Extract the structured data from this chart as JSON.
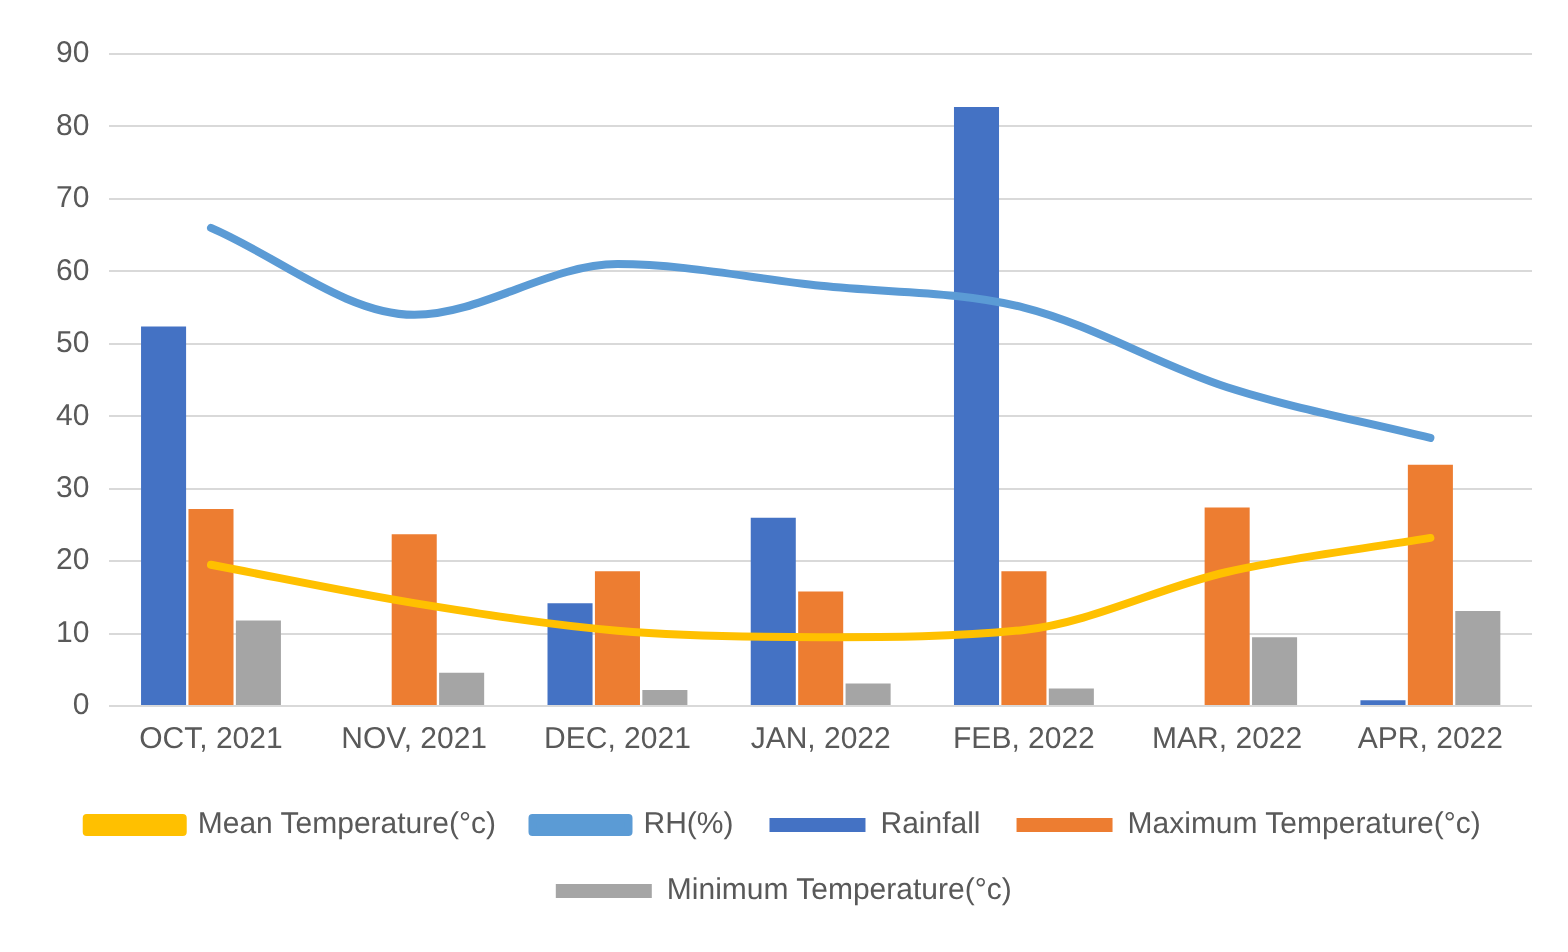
{
  "chart_data": {
    "type": "bar",
    "categories": [
      "OCT, 2021",
      "NOV, 2021",
      "DEC, 2021",
      "JAN, 2022",
      "FEB, 2022",
      "MAR, 2022",
      "APR, 2022"
    ],
    "series": [
      {
        "name": "Rainfall",
        "color": "#4472c4",
        "values": [
          52.4,
          0,
          14.2,
          26,
          82.7,
          0,
          0.8
        ]
      },
      {
        "name": "Maximum Temperature(°c)",
        "color": "#ed7d31",
        "values": [
          27.2,
          23.7,
          18.6,
          15.8,
          18.6,
          27.4,
          33.3
        ]
      },
      {
        "name": "Minimum Temperature(°c)",
        "color": "#a5a5a5",
        "values": [
          11.8,
          4.6,
          2.2,
          3.1,
          2.4,
          9.5,
          13.1
        ]
      },
      {
        "name": "Mean Temperature(°c)",
        "type": "line",
        "color": "#ffc000",
        "values": [
          19.5,
          14.2,
          10.4,
          9.5,
          10.5,
          18.5,
          23.2
        ]
      },
      {
        "name": "RH(%)",
        "type": "line",
        "color": "#5b9bd5",
        "values": [
          66,
          54,
          61,
          58,
          55,
          44,
          37
        ]
      }
    ],
    "ylim": [
      0,
      90
    ],
    "yticks": [
      0,
      10,
      20,
      30,
      40,
      50,
      60,
      70,
      80,
      90
    ],
    "grid": "y",
    "legend": "bottom",
    "marker": "none",
    "line_style": "solid"
  }
}
